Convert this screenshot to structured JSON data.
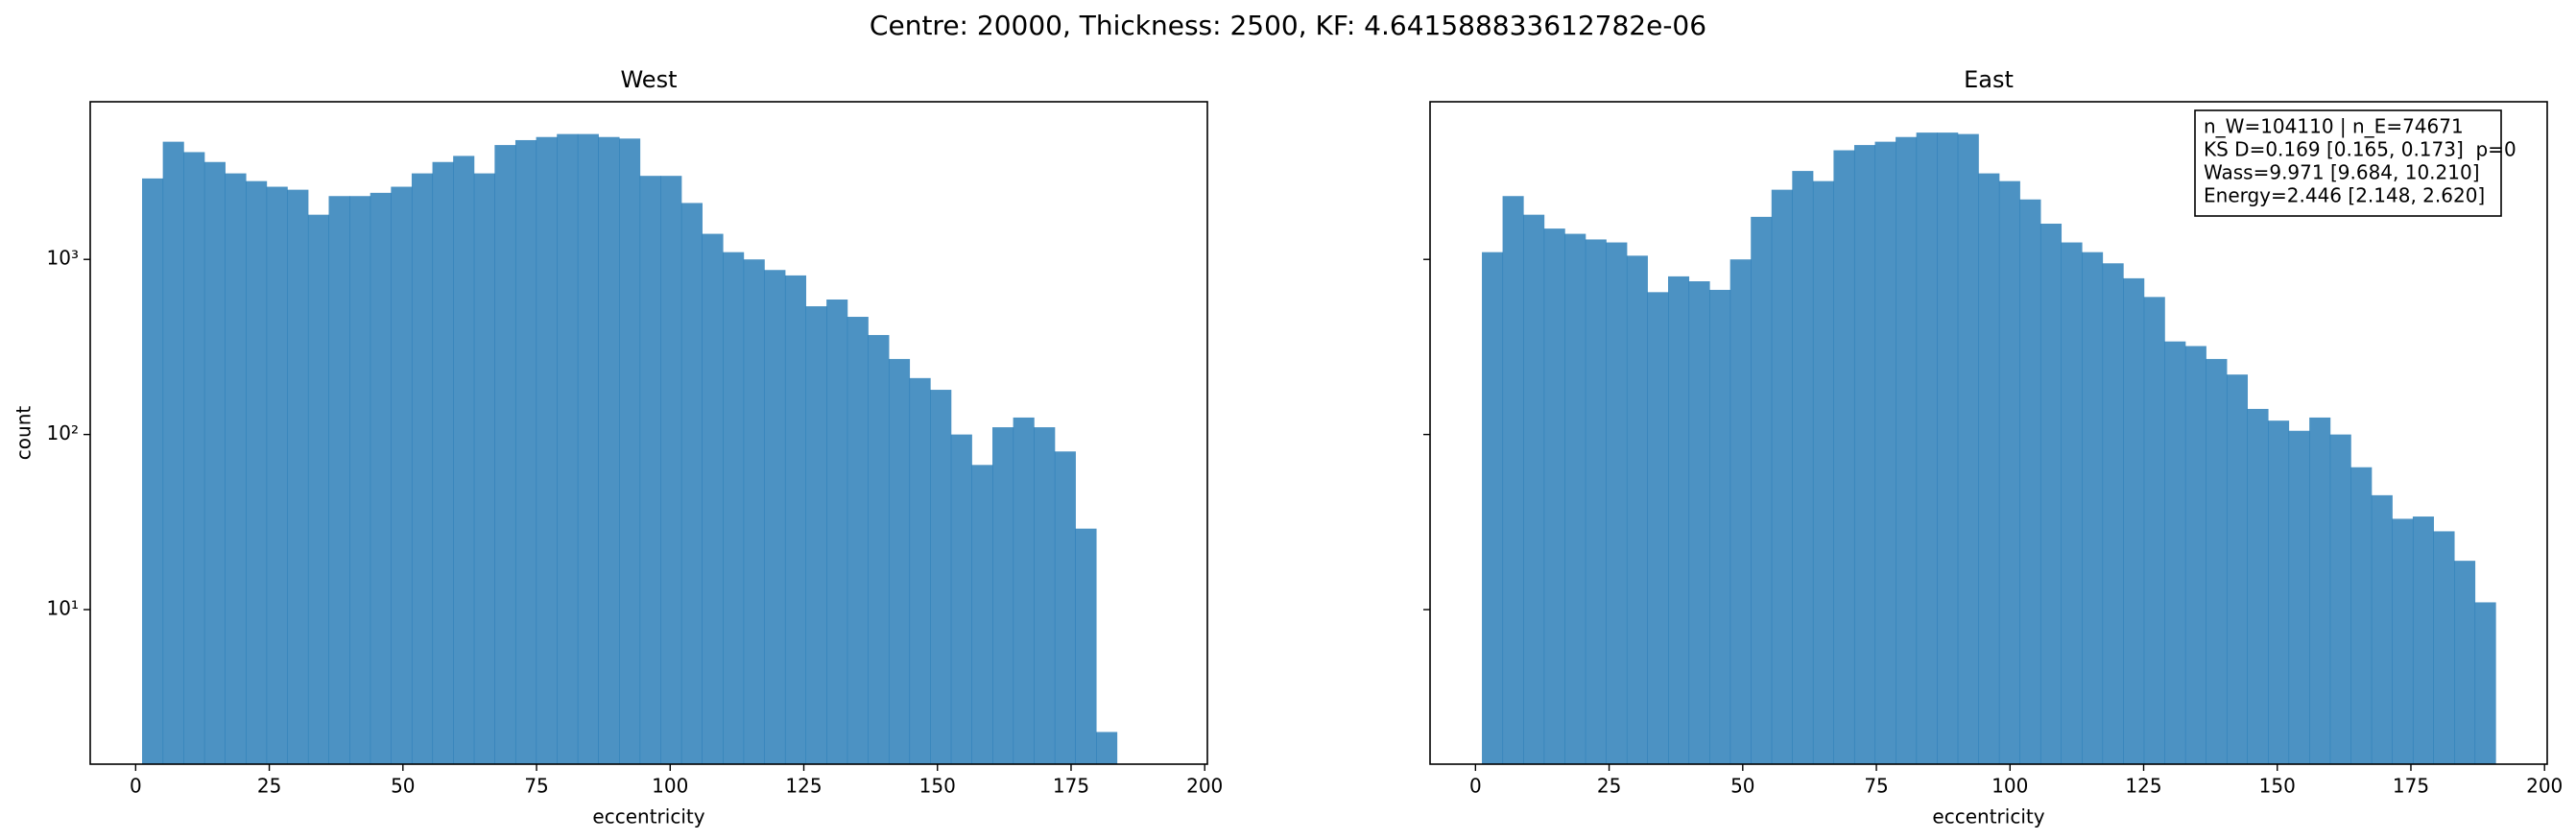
{
  "title": "Centre: 20000, Thickness: 2500, KF: 4.641588833612782e-06",
  "chart_data": [
    {
      "type": "histogram",
      "title": "West",
      "xlabel": "eccentricity",
      "ylabel": "count",
      "bins": [
        1.2,
        5.08,
        8.96,
        12.84,
        16.72,
        20.6,
        24.48,
        28.36,
        32.24,
        36.12,
        40.0,
        43.88,
        47.76,
        51.64,
        55.52,
        59.4,
        63.28,
        67.16,
        71.04,
        74.92,
        78.8,
        82.68,
        86.56,
        90.44,
        94.32,
        98.2,
        102.08,
        105.96,
        109.84,
        113.72,
        117.6,
        121.48,
        125.36,
        129.24,
        133.12,
        137.0,
        140.88,
        144.76,
        148.64,
        152.52,
        156.4,
        160.28,
        164.16,
        168.04,
        171.92,
        175.8,
        179.68,
        183.56
      ],
      "values": [
        2900,
        4700,
        4100,
        3600,
        3100,
        2800,
        2600,
        2500,
        1800,
        2300,
        2300,
        2400,
        2600,
        3100,
        3600,
        3900,
        3100,
        4500,
        4800,
        5000,
        5200,
        5200,
        5000,
        4900,
        3000,
        3000,
        2100,
        1400,
        1100,
        1000,
        870,
        810,
        540,
        590,
        470,
        370,
        270,
        210,
        180,
        100,
        67,
        110,
        125,
        110,
        80,
        29,
        2
      ],
      "color": "#1f77b4",
      "alpha": 0.8,
      "xlim": [
        -8.5,
        200.5
      ],
      "xticks": [
        0,
        25,
        50,
        75,
        100,
        125,
        150,
        175,
        200
      ],
      "ylim": [
        1.31,
        7950
      ],
      "log_y": true,
      "yticks": [
        {
          "value": 10,
          "label": "10¹"
        },
        {
          "value": 100,
          "label": "10²"
        },
        {
          "value": 1000,
          "label": "10³"
        }
      ]
    },
    {
      "type": "histogram",
      "title": "East",
      "xlabel": "eccentricity",
      "bins": [
        1.2,
        5.07,
        8.94,
        12.81,
        16.68,
        20.55,
        24.42,
        28.29,
        32.16,
        36.03,
        39.9,
        43.77,
        47.64,
        51.51,
        55.38,
        59.25,
        63.12,
        66.99,
        70.86,
        74.73,
        78.6,
        82.47,
        86.34,
        90.21,
        94.08,
        97.95,
        101.82,
        105.69,
        109.56,
        113.43,
        117.3,
        121.17,
        125.04,
        128.91,
        132.78,
        136.65,
        140.52,
        144.39,
        148.26,
        152.13,
        156.0,
        159.87,
        163.74,
        167.61,
        171.48,
        175.35,
        179.22,
        183.09,
        186.96,
        190.83
      ],
      "values": [
        1100,
        2300,
        1800,
        1500,
        1400,
        1300,
        1250,
        1050,
        650,
        800,
        750,
        670,
        1000,
        1750,
        2500,
        3200,
        2800,
        4200,
        4500,
        4700,
        5000,
        5300,
        5300,
        5200,
        3100,
        2800,
        2200,
        1600,
        1250,
        1100,
        950,
        780,
        610,
        340,
        320,
        270,
        220,
        140,
        120,
        105,
        125,
        100,
        65,
        45,
        33,
        34,
        28,
        19,
        11
      ],
      "color": "#1f77b4",
      "alpha": 0.8,
      "xlim": [
        -8.5,
        200.5
      ],
      "xticks": [
        0,
        25,
        50,
        75,
        100,
        125,
        150,
        175,
        200
      ],
      "ylim": [
        1.31,
        7950
      ],
      "log_y": true,
      "yticks": [
        10,
        100,
        1000
      ],
      "show_ytick_labels": false,
      "annotation": [
        "n_W=104110 | n_E=74671",
        "KS D=0.169 [0.165, 0.173]  p=0",
        "Wass=9.971 [9.684, 10.210]",
        "Energy=2.446 [2.148, 2.620]"
      ]
    }
  ]
}
